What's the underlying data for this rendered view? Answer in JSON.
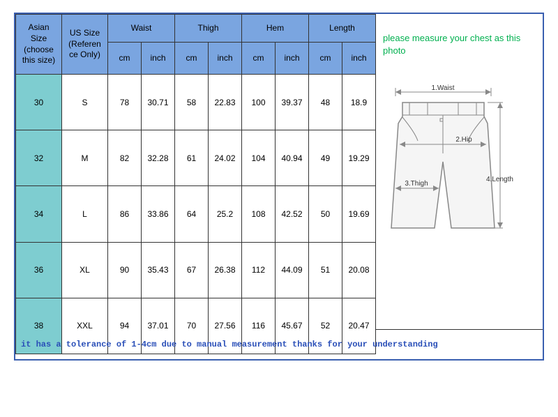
{
  "colors": {
    "outer_border": "#3a5fb0",
    "header_bg": "#7aa5e0",
    "asian_cell_bg": "#7ecdd0",
    "body_bg": "#ffffff",
    "cell_border": "#333333",
    "text": "#000000",
    "side_text": "#00b04f",
    "footer_text": "#2a4fb8",
    "diagram_stroke": "#888888",
    "diagram_fill": "#f5f5f5"
  },
  "table": {
    "headers": {
      "asian": "Asian Size (choose this size)",
      "us": "US Size (Referen ce Only)",
      "waist": "Waist",
      "thigh": "Thigh",
      "hem": "Hem",
      "length": "Length",
      "cm": "cm",
      "inch": "inch"
    },
    "rows": [
      {
        "asian": "30",
        "us": "S",
        "waist_cm": "78",
        "waist_in": "30.71",
        "thigh_cm": "58",
        "thigh_in": "22.83",
        "hem_cm": "100",
        "hem_in": "39.37",
        "len_cm": "48",
        "len_in": "18.9"
      },
      {
        "asian": "32",
        "us": "M",
        "waist_cm": "82",
        "waist_in": "32.28",
        "thigh_cm": "61",
        "thigh_in": "24.02",
        "hem_cm": "104",
        "hem_in": "40.94",
        "len_cm": "49",
        "len_in": "19.29"
      },
      {
        "asian": "34",
        "us": "L",
        "waist_cm": "86",
        "waist_in": "33.86",
        "thigh_cm": "64",
        "thigh_in": "25.2",
        "hem_cm": "108",
        "hem_in": "42.52",
        "len_cm": "50",
        "len_in": "19.69"
      },
      {
        "asian": "36",
        "us": "XL",
        "waist_cm": "90",
        "waist_in": "35.43",
        "thigh_cm": "67",
        "thigh_in": "26.38",
        "hem_cm": "112",
        "hem_in": "44.09",
        "len_cm": "51",
        "len_in": "20.08"
      },
      {
        "asian": "38",
        "us": "XXL",
        "waist_cm": "94",
        "waist_in": "37.01",
        "thigh_cm": "70",
        "thigh_in": "27.56",
        "hem_cm": "116",
        "hem_in": "45.67",
        "len_cm": "52",
        "len_in": "20.47"
      }
    ]
  },
  "side": {
    "note": "please measure your chest as this photo",
    "labels": {
      "waist": "1.Waist",
      "hip": "2.Hip",
      "thigh": "3.Thigh",
      "length": "4.Length"
    }
  },
  "footer": "it has a tolerance of 1-4cm due to manual measurement thanks for your understanding"
}
